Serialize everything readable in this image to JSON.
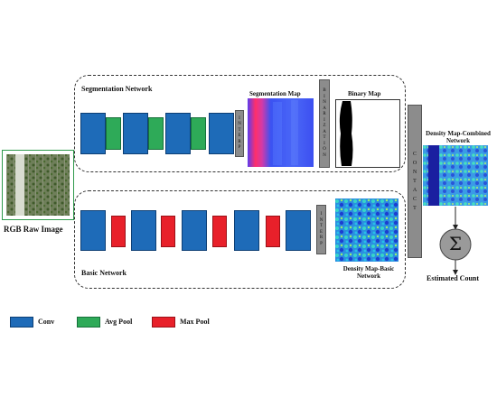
{
  "input": {
    "label": "RGB Raw Image"
  },
  "segmentation": {
    "title": "Segmentation Network",
    "upsample_label": "INTERP",
    "binarization_label": "BINARIZATION",
    "seg_map_label": "Segmentation Map",
    "binary_map_label": "Binary Map"
  },
  "basic": {
    "title": "Basic Network",
    "upsample_label": "INTERP",
    "density_label": "Density Map-Basic Network"
  },
  "combine": {
    "concat_label": "CONTACT",
    "density_combined_label": "Density Map-Combined Network",
    "sum_symbol": "Σ",
    "estimated_label": "Estimated Count"
  },
  "legend": [
    {
      "label": "Conv",
      "color": "#1e6bb8"
    },
    {
      "label": "Avg Pool",
      "color": "#2eaa58"
    },
    {
      "label": "Max Pool",
      "color": "#e8202a"
    }
  ]
}
